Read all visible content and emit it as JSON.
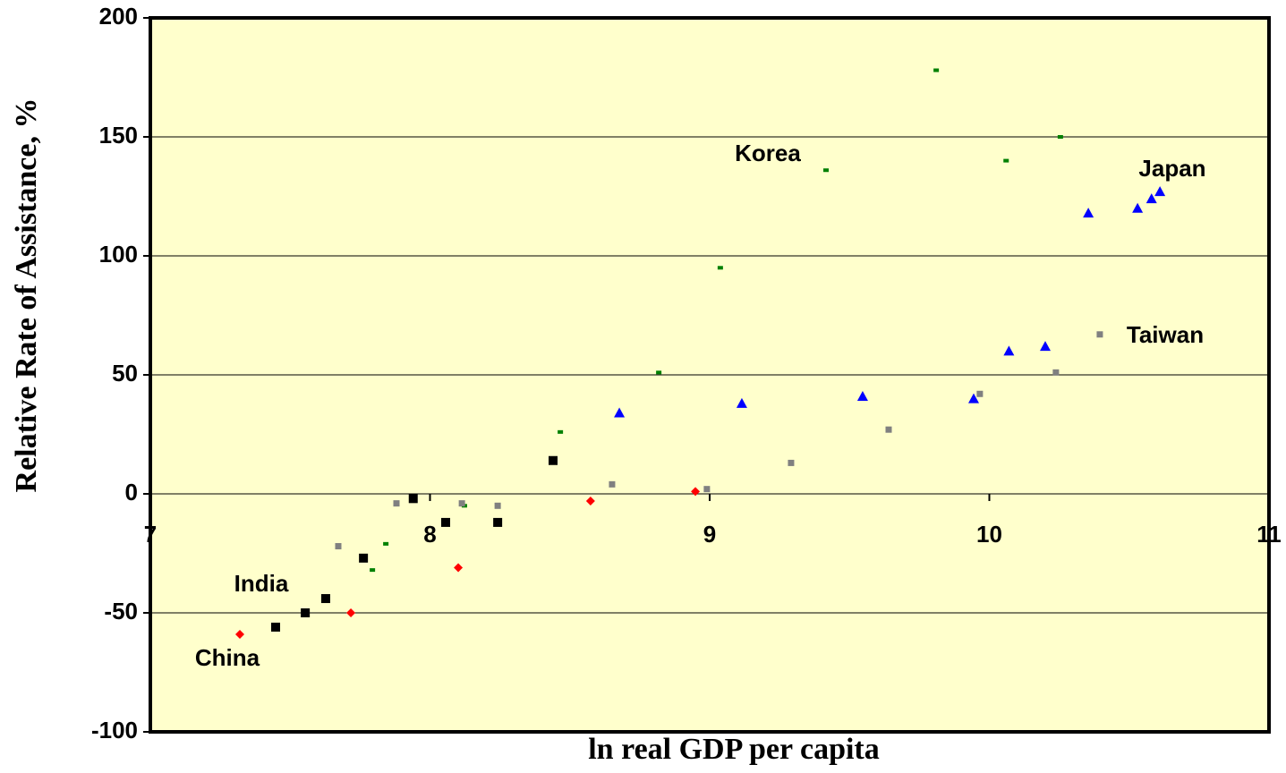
{
  "chart_data": {
    "type": "line",
    "x_label": "ln real GDP per capita",
    "y_label": "Relative Rate of Assistance, %",
    "xlim": [
      7,
      11
    ],
    "xticks": [
      7,
      8,
      9,
      10,
      11
    ],
    "ylim": [
      -100,
      200
    ],
    "yticks": [
      -100,
      -50,
      0,
      50,
      100,
      150,
      200
    ],
    "grid": true,
    "background": "#ffffcc",
    "series": [
      {
        "name": "Korea",
        "color": "#008000",
        "marker": "dash",
        "x": [
          7.794,
          7.842,
          8.123,
          8.466,
          8.818,
          9.038,
          9.416,
          9.81,
          10.06,
          10.254
        ],
        "values": [
          -32,
          -21,
          -5,
          26,
          51,
          95,
          136,
          178,
          140,
          150
        ]
      },
      {
        "name": "Japan",
        "color": "#0000ff",
        "marker": "triangle",
        "x": [
          8.677,
          9.115,
          9.547,
          9.944,
          10.07,
          10.2,
          10.354,
          10.53,
          10.58,
          10.61
        ],
        "values": [
          34,
          38,
          41,
          40,
          60,
          62,
          118,
          120,
          124,
          127
        ]
      },
      {
        "name": "Taiwan",
        "color": "#808080",
        "marker": "square-small",
        "x": [
          7.672,
          7.88,
          8.114,
          8.242,
          8.651,
          8.99,
          9.291,
          9.64,
          9.966,
          10.238,
          10.395
        ],
        "values": [
          -22,
          -4,
          -4,
          -5,
          4,
          2,
          13,
          27,
          42,
          51,
          67
        ]
      },
      {
        "name": "India",
        "color": "#000000",
        "marker": "square",
        "x": [
          7.448,
          7.554,
          7.627,
          7.762,
          7.94,
          8.056,
          8.242,
          8.44
        ],
        "values": [
          -56,
          -50,
          -44,
          -27,
          -2,
          -12,
          -12,
          14
        ]
      },
      {
        "name": "China",
        "color": "#ff0000",
        "marker": "diamond",
        "x": [
          7.32,
          7.717,
          8.101,
          8.574,
          8.949
        ],
        "values": [
          -59,
          -50,
          -31,
          -3,
          1
        ]
      }
    ]
  }
}
